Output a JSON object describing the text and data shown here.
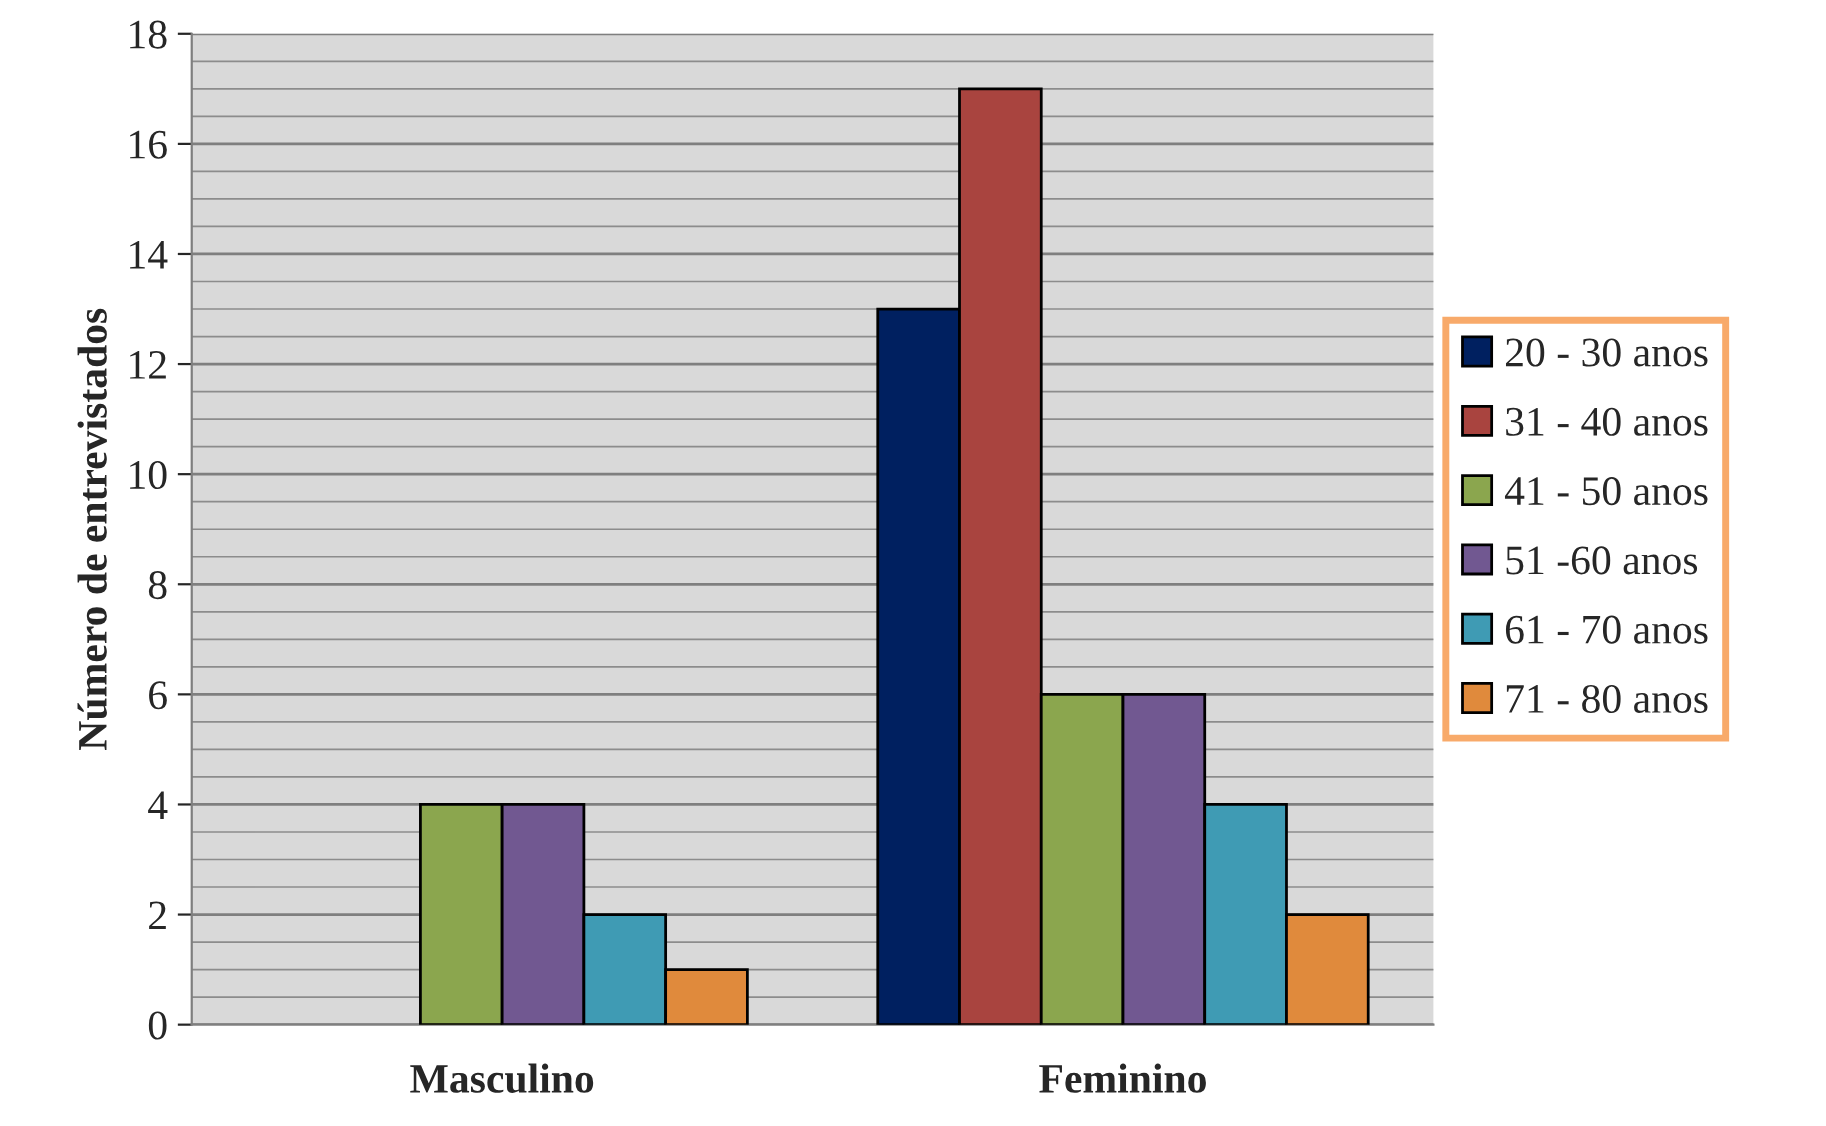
{
  "chart_data": {
    "type": "bar",
    "ylabel": "Número de entrevistados",
    "categories": [
      "Masculino",
      "Feminino"
    ],
    "series": [
      {
        "name": "20 - 30 anos",
        "color": "#002060",
        "values": [
          0,
          13
        ]
      },
      {
        "name": "31 - 40 anos",
        "color": "#a9443f",
        "values": [
          0,
          17
        ]
      },
      {
        "name": "41 - 50 anos",
        "color": "#8ba64e",
        "values": [
          4,
          6
        ]
      },
      {
        "name": "51 -60 anos",
        "color": "#715891",
        "values": [
          4,
          6
        ]
      },
      {
        "name": "61 - 70 anos",
        "color": "#3f9bb4",
        "values": [
          2,
          4
        ]
      },
      {
        "name": "71 - 80 anos",
        "color": "#e08a3c",
        "values": [
          1,
          2
        ]
      }
    ],
    "ylim": [
      0,
      18
    ],
    "yticks": [
      0,
      2,
      4,
      6,
      8,
      10,
      12,
      14,
      16,
      18
    ],
    "grid": "y",
    "legend": "right"
  }
}
